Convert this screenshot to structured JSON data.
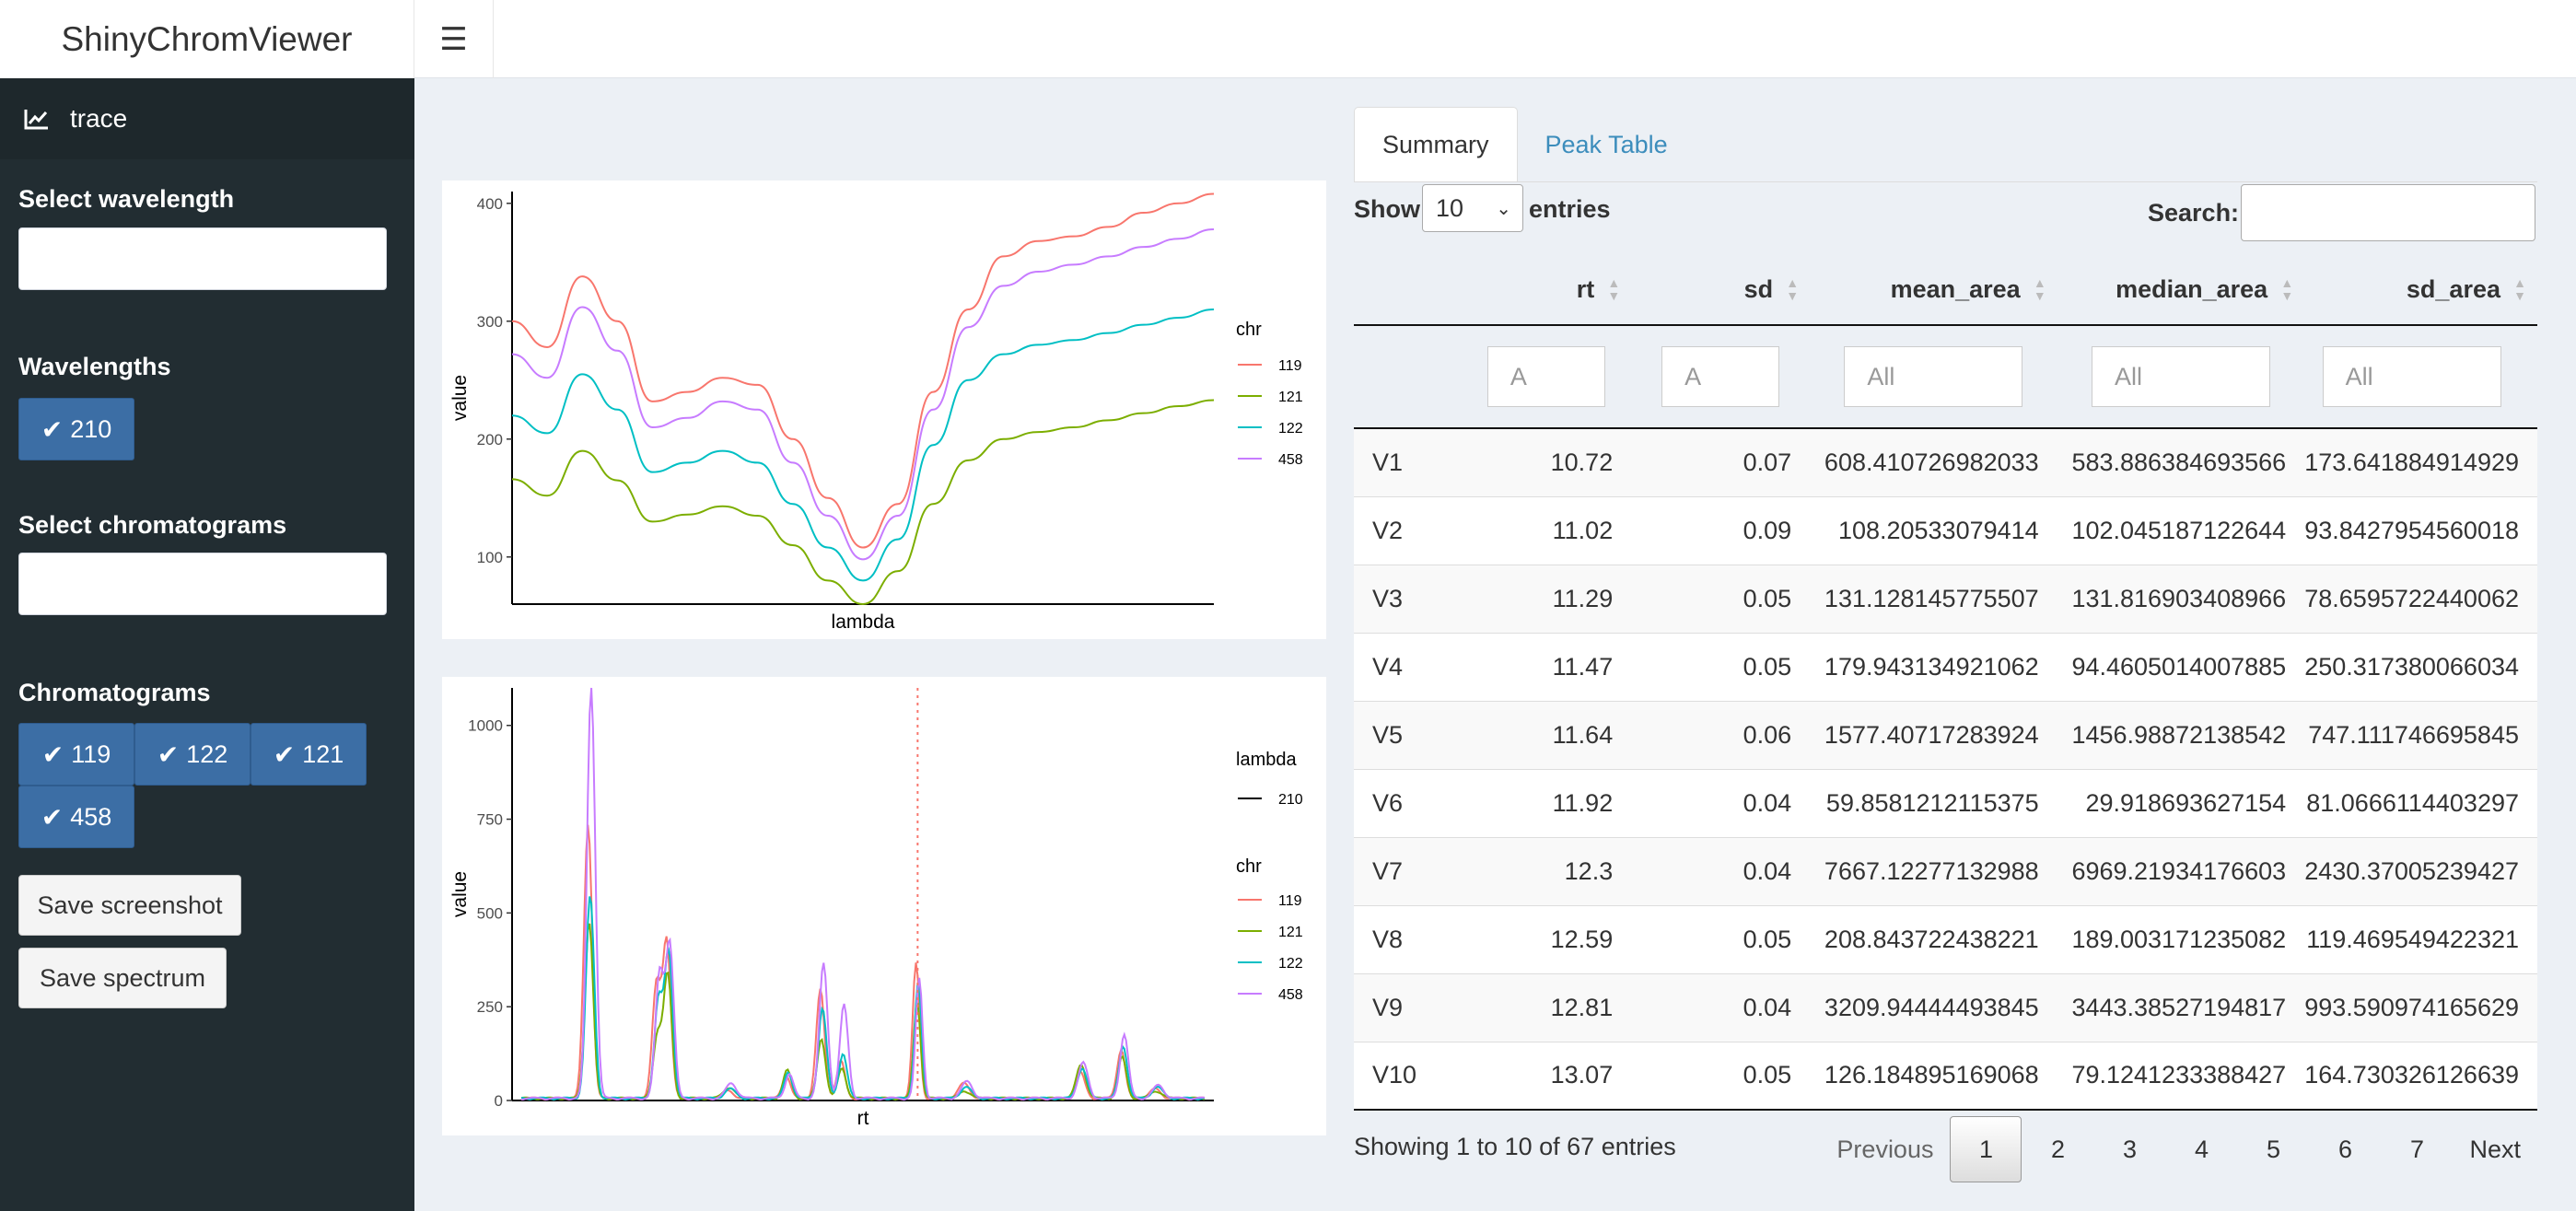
{
  "app": {
    "title": "ShinyChromViewer"
  },
  "sidebar": {
    "menu_item": "trace",
    "select_wavelength_label": "Select wavelength",
    "wavelengths_label": "Wavelengths",
    "wavelengths": [
      "210"
    ],
    "select_chromatograms_label": "Select chromatograms",
    "chromatograms_label": "Chromatograms",
    "chromatograms": [
      "119",
      "122",
      "121",
      "458"
    ],
    "save_screenshot_label": "Save screenshot",
    "save_spectrum_label": "Save spectrum"
  },
  "colors": {
    "119": "#F8766D",
    "121": "#7CAE00",
    "122": "#00BFC4",
    "458": "#C77CFF",
    "sidebar": "#222d32",
    "chip": "#3c6ea5"
  },
  "chart_data": [
    {
      "type": "line",
      "xlabel": "lambda",
      "ylabel": "value",
      "yticks": [
        100,
        200,
        300,
        400
      ],
      "ylim": [
        60,
        410
      ],
      "legend": {
        "title": "chr",
        "placement": "right"
      },
      "x": [
        0,
        0.05,
        0.1,
        0.15,
        0.2,
        0.25,
        0.3,
        0.35,
        0.4,
        0.45,
        0.5,
        0.55,
        0.6,
        0.65,
        0.7,
        0.75,
        0.8,
        0.85,
        0.9,
        0.95,
        1
      ],
      "series": [
        {
          "name": "119",
          "values": [
            300,
            278,
            338,
            300,
            232,
            240,
            252,
            246,
            200,
            150,
            108,
            145,
            240,
            310,
            355,
            368,
            372,
            380,
            392,
            400,
            408
          ]
        },
        {
          "name": "121",
          "values": [
            166,
            152,
            190,
            165,
            130,
            136,
            143,
            135,
            110,
            80,
            60,
            88,
            145,
            182,
            200,
            206,
            210,
            216,
            222,
            228,
            233
          ]
        },
        {
          "name": "122",
          "values": [
            220,
            205,
            255,
            225,
            172,
            180,
            190,
            180,
            145,
            108,
            80,
            115,
            195,
            250,
            272,
            280,
            284,
            290,
            297,
            303,
            310
          ]
        },
        {
          "name": "458",
          "values": [
            272,
            252,
            312,
            275,
            210,
            218,
            232,
            225,
            180,
            135,
            98,
            135,
            225,
            295,
            330,
            342,
            348,
            355,
            363,
            370,
            378
          ]
        }
      ]
    },
    {
      "type": "line",
      "xlabel": "rt",
      "ylabel": "value",
      "yticks": [
        0,
        250,
        500,
        750,
        1000
      ],
      "ylim": [
        0,
        1100
      ],
      "vline_x": 0.58,
      "legend": {
        "title": "chr",
        "placement": "right",
        "lambda_title": "lambda",
        "lambda_entries": [
          "210"
        ]
      },
      "peaks": [
        {
          "x": 0.1,
          "w": 0.006,
          "h": {
            "119": 730,
            "121": 470,
            "122": 540,
            "458": 1100
          }
        },
        {
          "x": 0.2,
          "w": 0.006,
          "h": {
            "119": 300,
            "121": 170,
            "122": 260,
            "458": 330
          }
        },
        {
          "x": 0.215,
          "w": 0.006,
          "h": {
            "119": 420,
            "121": 330,
            "122": 390,
            "458": 410
          }
        },
        {
          "x": 0.305,
          "w": 0.008,
          "h": {
            "119": 20,
            "121": 30,
            "122": 25,
            "458": 40
          }
        },
        {
          "x": 0.39,
          "w": 0.006,
          "h": {
            "119": 60,
            "121": 75,
            "122": 70,
            "458": 65
          }
        },
        {
          "x": 0.44,
          "w": 0.006,
          "h": {
            "119": 290,
            "121": 160,
            "122": 240,
            "458": 360
          }
        },
        {
          "x": 0.47,
          "w": 0.006,
          "h": {
            "119": 100,
            "121": 80,
            "122": 120,
            "458": 250
          }
        },
        {
          "x": 0.58,
          "w": 0.005,
          "h": {
            "119": 360,
            "121": 260,
            "122": 310,
            "458": 320
          }
        },
        {
          "x": 0.65,
          "w": 0.008,
          "h": {
            "119": 40,
            "121": 20,
            "122": 30,
            "458": 45
          }
        },
        {
          "x": 0.82,
          "w": 0.007,
          "h": {
            "119": 70,
            "121": 90,
            "122": 80,
            "458": 95
          }
        },
        {
          "x": 0.88,
          "w": 0.006,
          "h": {
            "119": 130,
            "121": 110,
            "122": 140,
            "458": 170
          }
        },
        {
          "x": 0.93,
          "w": 0.008,
          "h": {
            "119": 25,
            "121": 20,
            "122": 30,
            "458": 35
          }
        }
      ],
      "series_names": [
        "119",
        "121",
        "122",
        "458"
      ]
    }
  ],
  "tabs": [
    "Summary",
    "Peak Table"
  ],
  "table": {
    "show_label": "Show",
    "entries_label": "entries",
    "page_length": "10",
    "search_label": "Search:",
    "columns": [
      "",
      "rt",
      "sd",
      "mean_area",
      "median_area",
      "sd_area"
    ],
    "filter_placeholders": [
      "A",
      "A",
      "All",
      "All",
      "All"
    ],
    "rows": [
      [
        "V1",
        "10.72",
        "0.07",
        "608.410726982033",
        "583.886384693566",
        "173.641884914929"
      ],
      [
        "V2",
        "11.02",
        "0.09",
        "108.20533079414",
        "102.045187122644",
        "93.8427954560018"
      ],
      [
        "V3",
        "11.29",
        "0.05",
        "131.128145775507",
        "131.816903408966",
        "78.6595722440062"
      ],
      [
        "V4",
        "11.47",
        "0.05",
        "179.943134921062",
        "94.4605014007885",
        "250.317380066034"
      ],
      [
        "V5",
        "11.64",
        "0.06",
        "1577.40717283924",
        "1456.98872138542",
        "747.111746695845"
      ],
      [
        "V6",
        "11.92",
        "0.04",
        "59.8581212115375",
        "29.918693627154",
        "81.0666114403297"
      ],
      [
        "V7",
        "12.3",
        "0.04",
        "7667.12277132988",
        "6969.21934176603",
        "2430.37005239427"
      ],
      [
        "V8",
        "12.59",
        "0.05",
        "208.843722438221",
        "189.003171235082",
        "119.469549422321"
      ],
      [
        "V9",
        "12.81",
        "0.04",
        "3209.94444493845",
        "3443.38527194817",
        "993.590974165629"
      ],
      [
        "V10",
        "13.07",
        "0.05",
        "126.184895169068",
        "79.1241233388427",
        "164.730326126639"
      ]
    ],
    "info": "Showing 1 to 10 of 67 entries",
    "pagination": {
      "previous": "Previous",
      "pages": [
        "1",
        "2",
        "3",
        "4",
        "5",
        "6",
        "7"
      ],
      "next": "Next",
      "current": "1"
    }
  }
}
